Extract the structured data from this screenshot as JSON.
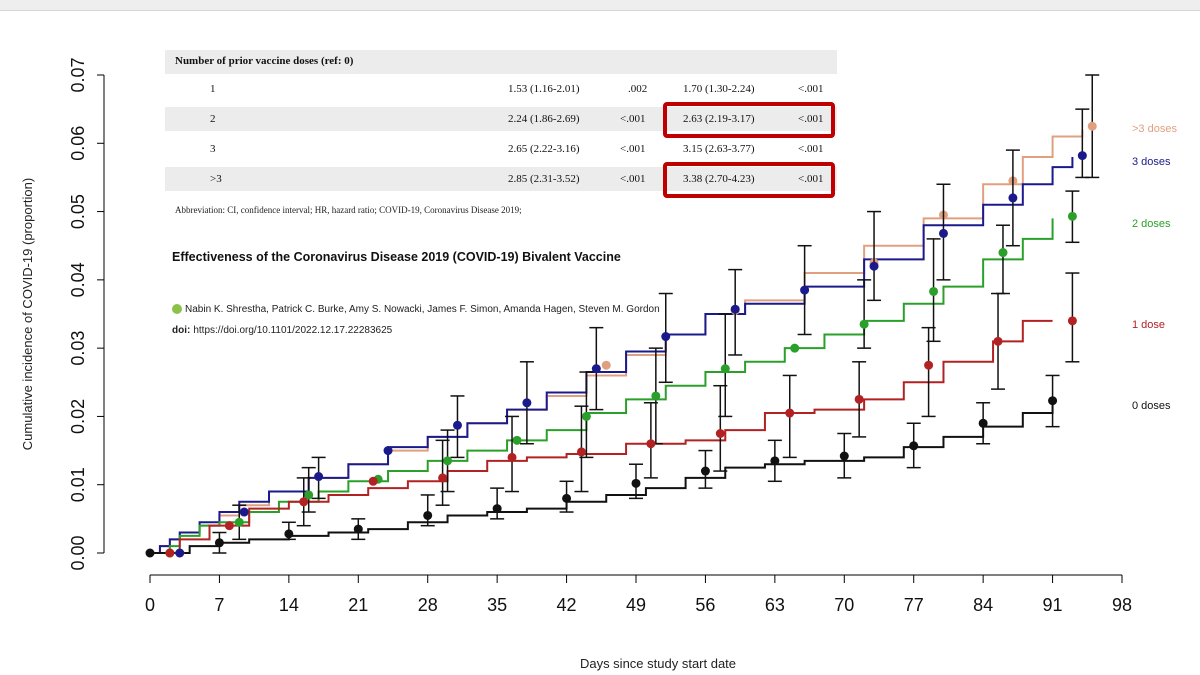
{
  "chart_data": {
    "type": "line",
    "title": "",
    "xlabel": "Days since study start date",
    "ylabel": "Cumulative incidence of COVID-19 (proportion)",
    "xlim": [
      0,
      98
    ],
    "ylim": [
      0,
      0.07
    ],
    "x_ticks": [
      "0",
      "7",
      "14",
      "21",
      "28",
      "35",
      "42",
      "49",
      "56",
      "63",
      "70",
      "77",
      "84",
      "91",
      "98"
    ],
    "y_ticks": [
      "0.00",
      "0.01",
      "0.02",
      "0.03",
      "0.04",
      "0.05",
      "0.06",
      "0.07"
    ],
    "series": [
      {
        "name": ">3 doses",
        "color": "#e0a080",
        "steps": [
          [
            0,
            0
          ],
          [
            1,
            0.001
          ],
          [
            2,
            0.002
          ],
          [
            3,
            0.003
          ],
          [
            5,
            0.004
          ],
          [
            7,
            0.0055
          ],
          [
            9,
            0.007
          ],
          [
            12,
            0.009
          ],
          [
            16,
            0.011
          ],
          [
            20,
            0.013
          ],
          [
            24,
            0.015
          ],
          [
            28,
            0.017
          ],
          [
            32,
            0.019
          ],
          [
            36,
            0.021
          ],
          [
            40,
            0.023
          ],
          [
            44,
            0.026
          ],
          [
            48,
            0.029
          ],
          [
            52,
            0.032
          ],
          [
            56,
            0.035
          ],
          [
            60,
            0.037
          ],
          [
            66,
            0.041
          ],
          [
            72,
            0.045
          ],
          [
            78,
            0.049
          ],
          [
            84,
            0.054
          ],
          [
            88,
            0.058
          ],
          [
            91,
            0.061
          ],
          [
            94,
            0.062
          ]
        ],
        "points": [
          [
            3,
            0
          ],
          [
            46,
            0.0275
          ],
          [
            59,
            0.0355
          ],
          [
            73,
            0.0425
          ],
          [
            80,
            0.0495
          ],
          [
            87,
            0.0545
          ],
          [
            95,
            0.0625
          ]
        ],
        "err": [
          [
            95,
            0.055,
            0.07
          ]
        ]
      },
      {
        "name": "3 doses",
        "color": "#1a1a8c",
        "steps": [
          [
            0,
            0
          ],
          [
            1,
            0.001
          ],
          [
            2,
            0.002
          ],
          [
            3,
            0.003
          ],
          [
            5,
            0.0045
          ],
          [
            7,
            0.006
          ],
          [
            9,
            0.0075
          ],
          [
            12,
            0.009
          ],
          [
            16,
            0.011
          ],
          [
            20,
            0.013
          ],
          [
            24,
            0.0155
          ],
          [
            28,
            0.017
          ],
          [
            32,
            0.019
          ],
          [
            36,
            0.021
          ],
          [
            40,
            0.0235
          ],
          [
            44,
            0.0265
          ],
          [
            48,
            0.0295
          ],
          [
            52,
            0.032
          ],
          [
            56,
            0.035
          ],
          [
            60,
            0.0365
          ],
          [
            66,
            0.039
          ],
          [
            72,
            0.043
          ],
          [
            78,
            0.048
          ],
          [
            84,
            0.051
          ],
          [
            88,
            0.054
          ],
          [
            91,
            0.0565
          ],
          [
            93,
            0.058
          ]
        ],
        "points": [
          [
            3,
            0
          ],
          [
            9.5,
            0.006
          ],
          [
            17,
            0.0112
          ],
          [
            24,
            0.015
          ],
          [
            31,
            0.0187
          ],
          [
            38,
            0.022
          ],
          [
            45,
            0.027
          ],
          [
            52,
            0.0317
          ],
          [
            59,
            0.0357
          ],
          [
            66,
            0.0385
          ],
          [
            73,
            0.042
          ],
          [
            80,
            0.0468
          ],
          [
            87,
            0.052
          ],
          [
            94,
            0.0582
          ]
        ],
        "err": [
          [
            17,
            0.008,
            0.014
          ],
          [
            31,
            0.014,
            0.023
          ],
          [
            38,
            0.016,
            0.028
          ],
          [
            45,
            0.021,
            0.033
          ],
          [
            52,
            0.025,
            0.038
          ],
          [
            59,
            0.029,
            0.0415
          ],
          [
            66,
            0.032,
            0.045
          ],
          [
            73,
            0.037,
            0.05
          ],
          [
            80,
            0.04,
            0.054
          ],
          [
            87,
            0.045,
            0.059
          ],
          [
            94,
            0.055,
            0.065
          ]
        ]
      },
      {
        "name": "2 doses",
        "color": "#2aa02a",
        "steps": [
          [
            0,
            0
          ],
          [
            2,
            0.001
          ],
          [
            3,
            0.0025
          ],
          [
            5,
            0.004
          ],
          [
            7,
            0.0045
          ],
          [
            10,
            0.006
          ],
          [
            13,
            0.0075
          ],
          [
            17,
            0.009
          ],
          [
            20,
            0.0105
          ],
          [
            24,
            0.012
          ],
          [
            28,
            0.0135
          ],
          [
            32,
            0.015
          ],
          [
            36,
            0.0165
          ],
          [
            40,
            0.018
          ],
          [
            44,
            0.0205
          ],
          [
            48,
            0.0225
          ],
          [
            52,
            0.0245
          ],
          [
            56,
            0.0265
          ],
          [
            60,
            0.028
          ],
          [
            64,
            0.03
          ],
          [
            68,
            0.032
          ],
          [
            72,
            0.034
          ],
          [
            76,
            0.0365
          ],
          [
            80,
            0.039
          ],
          [
            84,
            0.043
          ],
          [
            88,
            0.046
          ],
          [
            91,
            0.049
          ]
        ],
        "points": [
          [
            2,
            0
          ],
          [
            9,
            0.0045
          ],
          [
            16,
            0.0085
          ],
          [
            23,
            0.0108
          ],
          [
            30,
            0.0135
          ],
          [
            37,
            0.0165
          ],
          [
            44,
            0.02
          ],
          [
            51,
            0.023
          ],
          [
            58,
            0.027
          ],
          [
            65,
            0.03
          ],
          [
            72,
            0.0335
          ],
          [
            79,
            0.0383
          ],
          [
            86,
            0.044
          ],
          [
            93,
            0.0493
          ]
        ],
        "err": [
          [
            9,
            0.002,
            0.007
          ],
          [
            16,
            0.006,
            0.0125
          ],
          [
            30,
            0.009,
            0.018
          ],
          [
            44,
            0.014,
            0.0265
          ],
          [
            51,
            0.016,
            0.03
          ],
          [
            58,
            0.02,
            0.035
          ],
          [
            72,
            0.03,
            0.04
          ],
          [
            79,
            0.031,
            0.046
          ],
          [
            86,
            0.038,
            0.048
          ],
          [
            93,
            0.0455,
            0.053
          ]
        ]
      },
      {
        "name": "1 dose",
        "color": "#b22222",
        "steps": [
          [
            0,
            0
          ],
          [
            3,
            0.002
          ],
          [
            6,
            0.004
          ],
          [
            10,
            0.0065
          ],
          [
            14,
            0.0075
          ],
          [
            18,
            0.0085
          ],
          [
            22,
            0.0095
          ],
          [
            26,
            0.0105
          ],
          [
            30,
            0.012
          ],
          [
            34,
            0.0135
          ],
          [
            38,
            0.014
          ],
          [
            42,
            0.0145
          ],
          [
            48,
            0.016
          ],
          [
            54,
            0.0165
          ],
          [
            58,
            0.018
          ],
          [
            62,
            0.0205
          ],
          [
            67,
            0.021
          ],
          [
            72,
            0.0225
          ],
          [
            76,
            0.025
          ],
          [
            80,
            0.028
          ],
          [
            85,
            0.031
          ],
          [
            88,
            0.034
          ],
          [
            91,
            0.034
          ]
        ],
        "points": [
          [
            2,
            0
          ],
          [
            8,
            0.004
          ],
          [
            15.5,
            0.0075
          ],
          [
            22.5,
            0.0105
          ],
          [
            29.5,
            0.011
          ],
          [
            36.5,
            0.014
          ],
          [
            43.5,
            0.0148
          ],
          [
            50.5,
            0.016
          ],
          [
            57.5,
            0.0175
          ],
          [
            64.5,
            0.0205
          ],
          [
            71.5,
            0.0225
          ],
          [
            78.5,
            0.0275
          ],
          [
            85.5,
            0.031
          ],
          [
            93,
            0.034
          ]
        ],
        "err": [
          [
            15.5,
            0.004,
            0.011
          ],
          [
            29.5,
            0.007,
            0.0165
          ],
          [
            36.5,
            0.009,
            0.02
          ],
          [
            43.5,
            0.009,
            0.0215
          ],
          [
            50.5,
            0.011,
            0.022
          ],
          [
            57.5,
            0.012,
            0.0245
          ],
          [
            64.5,
            0.014,
            0.026
          ],
          [
            71.5,
            0.017,
            0.028
          ],
          [
            78.5,
            0.02,
            0.033
          ],
          [
            85.5,
            0.024,
            0.038
          ],
          [
            93,
            0.028,
            0.041
          ]
        ]
      },
      {
        "name": "0 doses",
        "color": "#111111",
        "steps": [
          [
            0,
            0
          ],
          [
            4,
            0.001
          ],
          [
            7,
            0.0015
          ],
          [
            10,
            0.002
          ],
          [
            14,
            0.0025
          ],
          [
            18,
            0.003
          ],
          [
            22,
            0.0035
          ],
          [
            26,
            0.0045
          ],
          [
            30,
            0.0055
          ],
          [
            34,
            0.006
          ],
          [
            38,
            0.0065
          ],
          [
            42,
            0.0075
          ],
          [
            46,
            0.0085
          ],
          [
            50,
            0.0095
          ],
          [
            54,
            0.011
          ],
          [
            58,
            0.0125
          ],
          [
            62,
            0.013
          ],
          [
            66,
            0.0135
          ],
          [
            72,
            0.014
          ],
          [
            76,
            0.0155
          ],
          [
            80,
            0.017
          ],
          [
            84,
            0.0185
          ],
          [
            88,
            0.0205
          ],
          [
            91,
            0.022
          ]
        ],
        "points": [
          [
            0,
            0
          ],
          [
            7,
            0.0015
          ],
          [
            14,
            0.0028
          ],
          [
            21,
            0.0035
          ],
          [
            28,
            0.0055
          ],
          [
            35,
            0.0065
          ],
          [
            42,
            0.008
          ],
          [
            49,
            0.0102
          ],
          [
            56,
            0.012
          ],
          [
            63,
            0.0135
          ],
          [
            70,
            0.0142
          ],
          [
            77,
            0.0157
          ],
          [
            84,
            0.019
          ],
          [
            91,
            0.0223
          ]
        ],
        "err": [
          [
            7,
            0,
            0.003
          ],
          [
            14,
            0.002,
            0.0045
          ],
          [
            21,
            0.002,
            0.005
          ],
          [
            28,
            0.004,
            0.0085
          ],
          [
            35,
            0.005,
            0.0095
          ],
          [
            42,
            0.006,
            0.0105
          ],
          [
            49,
            0.008,
            0.013
          ],
          [
            56,
            0.0095,
            0.015
          ],
          [
            63,
            0.0105,
            0.0165
          ],
          [
            70,
            0.011,
            0.0175
          ],
          [
            77,
            0.0125,
            0.019
          ],
          [
            84,
            0.016,
            0.022
          ],
          [
            91,
            0.0185,
            0.026
          ]
        ]
      }
    ]
  },
  "table": {
    "header": "Number of prior vaccine doses (ref: 0)",
    "rows": [
      {
        "label": "1",
        "c1": "1.53 (1.16-2.01)",
        "p1": ".002",
        "c2": "1.70 (1.30-2.24)",
        "p2": "<.001"
      },
      {
        "label": "2",
        "c1": "2.24 (1.86-2.69)",
        "p1": "<.001",
        "c2": "2.63 (2.19-3.17)",
        "p2": "<.001"
      },
      {
        "label": "3",
        "c1": "2.65 (2.22-3.16)",
        "p1": "<.001",
        "c2": "3.15 (2.63-3.77)",
        "p2": "<.001"
      },
      {
        "label": ">3",
        "c1": "2.85 (2.31-3.52)",
        "p1": "<.001",
        "c2": "3.38 (2.70-4.23)",
        "p2": "<.001"
      }
    ],
    "abbreviation": "Abbreviation: CI, confidence interval; HR, hazard ratio; COVID-19, Coronavirus Disease 2019;"
  },
  "paper": {
    "title": "Effectiveness of the Coronavirus Disease 2019 (COVID-19) Bivalent Vaccine",
    "authors": "Nabin K. Shrestha, Patrick C. Burke, Amy S. Nowacki, James F. Simon, Amanda Hagen, Steven M. Gordon",
    "doi_label": "doi:",
    "doi_value": "https://doi.org/10.1101/2022.12.17.22283625"
  },
  "colors": {
    "highlight": "#c00000"
  }
}
